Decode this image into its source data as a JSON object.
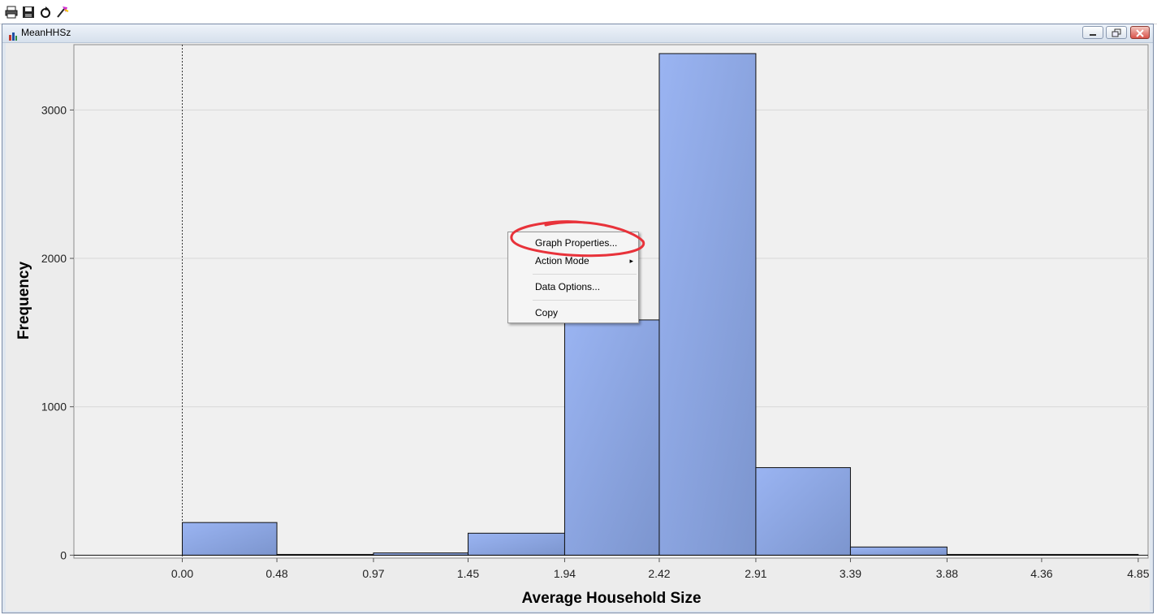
{
  "toolbar": {
    "icons": [
      "printer-icon",
      "save-icon",
      "refresh-icon",
      "wand-icon"
    ]
  },
  "window": {
    "title": "MeanHHSz",
    "icon": "graph-icon"
  },
  "chart_data": {
    "type": "bar",
    "title": "",
    "xlabel": "Average Household Size",
    "ylabel": "Frequency",
    "x_ticks": [
      "0.00",
      "0.48",
      "0.97",
      "1.45",
      "1.94",
      "2.42",
      "2.91",
      "3.39",
      "3.88",
      "4.36",
      "4.85"
    ],
    "y_ticks": [
      "0",
      "1000",
      "2000",
      "3000"
    ],
    "bin_edges": [
      0.0,
      0.48,
      0.97,
      1.45,
      1.94,
      2.42,
      2.91,
      3.39,
      3.88,
      4.36,
      4.85
    ],
    "values": [
      220,
      5,
      15,
      148,
      1585,
      3380,
      590,
      55,
      5,
      5
    ],
    "ylim": [
      -20,
      3440
    ],
    "xlim": [
      -0.55,
      4.9
    ],
    "grid": true,
    "reference_line_x": 0.0,
    "bar_color": "#8ba6e6"
  },
  "context_menu": {
    "items": [
      {
        "label": "Graph Properties...",
        "highlighted": true
      },
      {
        "label": "Action Mode",
        "submenu": true
      },
      {
        "label": "Data Options..."
      },
      {
        "label": "Copy"
      }
    ],
    "highlight_color": "#e8323a"
  }
}
